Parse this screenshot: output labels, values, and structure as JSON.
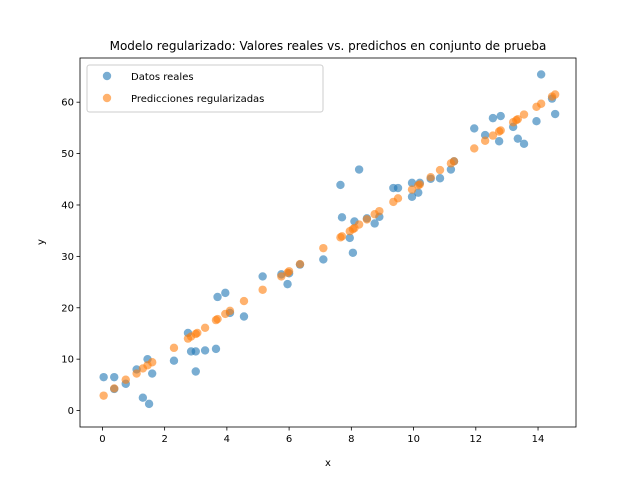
{
  "chart_data": {
    "type": "scatter",
    "title": "Modelo regularizado: Valores reales vs. predichos en conjunto de prueba",
    "xlabel": "x",
    "ylabel": "y",
    "xlim": [
      -0.72,
      15.22
    ],
    "ylim": [
      -3.2,
      68.6
    ],
    "xticks": [
      0,
      2,
      4,
      6,
      8,
      10,
      12,
      14
    ],
    "yticks": [
      0,
      10,
      20,
      30,
      40,
      50,
      60
    ],
    "grid": false,
    "legend_position": "upper-left",
    "series": [
      {
        "name": "Datos reales",
        "color": "#1f77b4",
        "points": [
          [
            0.04,
            6.5
          ],
          [
            0.38,
            6.5
          ],
          [
            0.38,
            4.2
          ],
          [
            0.75,
            5.2
          ],
          [
            1.1,
            8.0
          ],
          [
            1.3,
            2.5
          ],
          [
            1.45,
            10.0
          ],
          [
            1.5,
            1.3
          ],
          [
            1.6,
            7.2
          ],
          [
            2.3,
            9.7
          ],
          [
            2.75,
            15.1
          ],
          [
            2.85,
            11.5
          ],
          [
            3.0,
            7.6
          ],
          [
            3.0,
            11.5
          ],
          [
            3.3,
            11.7
          ],
          [
            3.65,
            12.0
          ],
          [
            3.7,
            22.1
          ],
          [
            3.95,
            22.9
          ],
          [
            4.1,
            19.0
          ],
          [
            4.55,
            18.3
          ],
          [
            5.15,
            26.1
          ],
          [
            5.75,
            26.5
          ],
          [
            5.95,
            24.6
          ],
          [
            6.0,
            26.7
          ],
          [
            6.35,
            28.4
          ],
          [
            7.1,
            29.4
          ],
          [
            7.65,
            43.9
          ],
          [
            7.7,
            37.6
          ],
          [
            7.95,
            33.6
          ],
          [
            8.05,
            30.7
          ],
          [
            8.1,
            36.8
          ],
          [
            8.25,
            46.9
          ],
          [
            8.5,
            37.4
          ],
          [
            8.75,
            36.4
          ],
          [
            8.9,
            37.7
          ],
          [
            9.35,
            43.3
          ],
          [
            9.5,
            43.3
          ],
          [
            9.95,
            41.6
          ],
          [
            9.95,
            44.3
          ],
          [
            10.15,
            42.4
          ],
          [
            10.2,
            44.3
          ],
          [
            10.55,
            45.1
          ],
          [
            10.85,
            45.2
          ],
          [
            11.2,
            46.9
          ],
          [
            11.3,
            48.5
          ],
          [
            11.95,
            54.9
          ],
          [
            12.3,
            53.6
          ],
          [
            12.55,
            56.9
          ],
          [
            12.75,
            52.4
          ],
          [
            12.8,
            57.3
          ],
          [
            13.2,
            55.2
          ],
          [
            13.35,
            52.9
          ],
          [
            13.55,
            51.9
          ],
          [
            13.95,
            56.3
          ],
          [
            14.1,
            65.4
          ],
          [
            14.45,
            60.7
          ],
          [
            14.55,
            57.7
          ]
        ]
      },
      {
        "name": "Predicciones regularizadas",
        "color": "#ff7f0e",
        "points": [
          [
            0.04,
            2.9
          ],
          [
            0.38,
            4.3
          ],
          [
            0.75,
            6.0
          ],
          [
            1.1,
            7.2
          ],
          [
            1.3,
            8.2
          ],
          [
            1.45,
            8.8
          ],
          [
            1.6,
            9.4
          ],
          [
            2.3,
            12.2
          ],
          [
            2.75,
            14.0
          ],
          [
            2.85,
            14.4
          ],
          [
            3.0,
            14.9
          ],
          [
            3.05,
            15.1
          ],
          [
            3.3,
            16.1
          ],
          [
            3.65,
            17.6
          ],
          [
            3.7,
            17.8
          ],
          [
            3.95,
            18.8
          ],
          [
            4.1,
            19.4
          ],
          [
            4.55,
            21.3
          ],
          [
            5.15,
            23.5
          ],
          [
            5.75,
            26.1
          ],
          [
            5.95,
            26.8
          ],
          [
            6.0,
            27.1
          ],
          [
            6.35,
            28.5
          ],
          [
            7.1,
            31.6
          ],
          [
            7.65,
            33.7
          ],
          [
            7.7,
            33.9
          ],
          [
            7.95,
            34.9
          ],
          [
            8.05,
            35.3
          ],
          [
            8.1,
            35.5
          ],
          [
            8.25,
            36.2
          ],
          [
            8.5,
            37.2
          ],
          [
            8.75,
            38.2
          ],
          [
            8.9,
            38.8
          ],
          [
            9.35,
            40.6
          ],
          [
            9.5,
            41.3
          ],
          [
            9.95,
            43.0
          ],
          [
            10.15,
            43.8
          ],
          [
            10.2,
            44.0
          ],
          [
            10.55,
            45.4
          ],
          [
            10.85,
            46.8
          ],
          [
            11.2,
            48.1
          ],
          [
            11.3,
            48.5
          ],
          [
            11.95,
            51.0
          ],
          [
            12.3,
            52.5
          ],
          [
            12.55,
            53.5
          ],
          [
            12.75,
            54.3
          ],
          [
            12.8,
            54.5
          ],
          [
            13.2,
            56.1
          ],
          [
            13.3,
            56.5
          ],
          [
            13.35,
            56.7
          ],
          [
            13.55,
            57.6
          ],
          [
            13.95,
            59.1
          ],
          [
            14.1,
            59.7
          ],
          [
            14.45,
            61.1
          ],
          [
            14.55,
            61.5
          ]
        ]
      }
    ]
  }
}
